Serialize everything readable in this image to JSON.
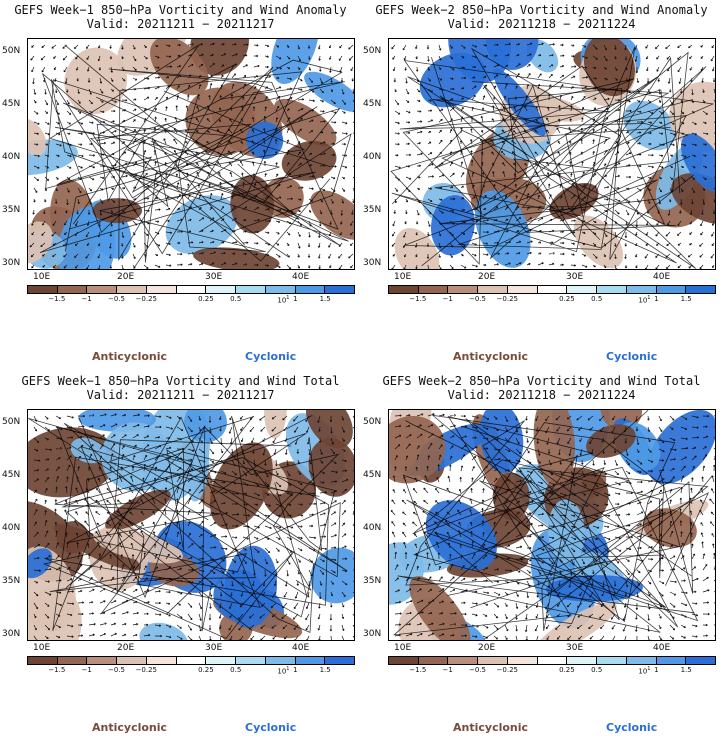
{
  "colors": {
    "anticyclonic": "#7a4a3a",
    "cyclonic": "#2a6fd6",
    "palette": [
      "#6e4434",
      "#946550",
      "#b98f7c",
      "#dcc2b3",
      "#f3e4dc",
      "#ffffff",
      "#dff4f8",
      "#a8dcf0",
      "#7fbbe8",
      "#4f9ae6",
      "#2a6fd6"
    ]
  },
  "icons": [
    "wind-arrow-icon",
    "coastline-line-icon"
  ],
  "panels": [
    {
      "title": "GEFS Week−1 850−hPa Vorticity and Wind Anomaly",
      "valid": "Valid: 20211211 − 20211217",
      "kind": "anomaly",
      "seed": 1
    },
    {
      "title": "GEFS Week−2 850−hPa Vorticity and Wind Anomaly",
      "valid": "Valid: 20211218 − 20211224",
      "kind": "anomaly",
      "seed": 2
    },
    {
      "title": "GEFS Week−1 850−hPa Vorticity and Wind Total",
      "valid": "Valid: 20211211 − 20211217",
      "kind": "total",
      "seed": 3
    },
    {
      "title": "GEFS Week−2 850−hPa Vorticity and Wind Total",
      "valid": "Valid: 20211218 − 20211224",
      "kind": "total",
      "seed": 4
    }
  ],
  "axis": {
    "y_ticks": [
      "50N",
      "45N",
      "40N",
      "35N",
      "30N"
    ],
    "x_ticks": [
      "10E",
      "20E",
      "30E",
      "40E"
    ]
  },
  "colorbar": {
    "ticks": [
      "−1.5",
      "−1",
      "−0.5",
      "−0.25",
      "0.25",
      "0.5",
      "1",
      "1.5"
    ],
    "unit": "10",
    "unit_exp": "1"
  },
  "legend": {
    "anticyclonic": "Anticyclonic",
    "cyclonic": "Cyclonic"
  }
}
